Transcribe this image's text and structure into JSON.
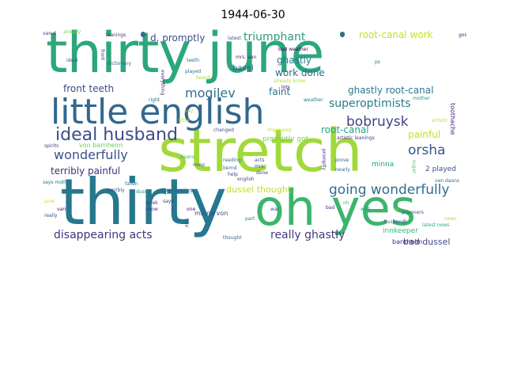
{
  "title": "1944-06-30",
  "words": [
    {
      "text": "thirty june",
      "color": "#2ba77b"
    },
    {
      "text": "stretch",
      "color": "#a2d93a"
    },
    {
      "text": "thirty",
      "color": "#25788e"
    },
    {
      "text": "oh yes",
      "color": "#3cb56c"
    },
    {
      "text": "little english",
      "color": "#31688e"
    },
    {
      "text": "ideal husband",
      "color": "#3e4c8a"
    },
    {
      "text": "going wonderfully",
      "color": "#2d6e8e"
    },
    {
      "text": "mogilev",
      "color": "#2d708e"
    },
    {
      "text": "bobruysk",
      "color": "#404387"
    },
    {
      "text": "orsha",
      "color": "#3a548c"
    },
    {
      "text": "wonderfully",
      "color": "#3b528b"
    },
    {
      "text": "triumphant",
      "color": "#2e9a82"
    },
    {
      "text": "superoptimists",
      "color": "#287c8e"
    },
    {
      "text": "root-canal work",
      "color": "#c8e020"
    },
    {
      "text": "d. promptly",
      "color": "#3b518b"
    },
    {
      "text": "disappearing acts",
      "color": "#46327e"
    },
    {
      "text": "really ghastly",
      "color": "#443a83"
    },
    {
      "text": "work done",
      "color": "#2f6b8e"
    },
    {
      "text": "ghastly",
      "color": "#297a8e"
    },
    {
      "text": "ghastly root-canal",
      "color": "#2a778e"
    },
    {
      "text": "front teeth",
      "color": "#3f4889"
    },
    {
      "text": "faint",
      "color": "#2c738e"
    },
    {
      "text": "root-canal",
      "color": "#21a685"
    },
    {
      "text": "painful",
      "color": "#c2df23"
    },
    {
      "text": "terribly painful",
      "color": "#472d7b"
    },
    {
      "text": "dussel thought",
      "color": "#bddf26"
    },
    {
      "text": "bad dussel",
      "color": "#3f4788"
    },
    {
      "text": "von barnheim",
      "color": "#6ccd5a"
    },
    {
      "text": "promptly got",
      "color": "#7ad151"
    },
    {
      "text": "minna",
      "color": "#1fa188"
    },
    {
      "text": "2 played",
      "color": "#3b528b"
    },
    {
      "text": "basel",
      "color": "#39568c"
    },
    {
      "text": "innkeeper",
      "color": "#35b779"
    },
    {
      "text": "minna von",
      "color": "#3e4a89"
    },
    {
      "text": "toothache",
      "color": "#482475"
    },
    {
      "text": "barnhelm",
      "color": "#482173"
    },
    {
      "text": "van d",
      "color": "#443983"
    },
    {
      "text": "already",
      "color": "#7ad151"
    },
    {
      "text": "leanings",
      "color": "#46337f"
    },
    {
      "text": "latest",
      "color": "#38588c"
    },
    {
      "text": "going",
      "color": "#481769"
    },
    {
      "text": "bad weather",
      "color": "#440154"
    },
    {
      "text": "ideal",
      "color": "#3a548c"
    },
    {
      "text": "front",
      "color": "#414487"
    },
    {
      "text": "teeth",
      "color": "#31688e"
    },
    {
      "text": "mrs. van",
      "color": "#481f70"
    },
    {
      "text": "already know",
      "color": "#b5de2b"
    },
    {
      "text": "lots",
      "color": "#440154"
    },
    {
      "text": "dictionary",
      "color": "#31688e"
    },
    {
      "text": "played",
      "color": "#2e6e8e"
    },
    {
      "text": "heard",
      "color": "#a5db36"
    },
    {
      "text": "everything",
      "color": "#46327e"
    },
    {
      "text": "right",
      "color": "#2c728e"
    },
    {
      "text": "say",
      "color": "#b8de29"
    },
    {
      "text": "little",
      "color": "#d8e219"
    },
    {
      "text": "artistic",
      "color": "#bddf26"
    },
    {
      "text": "artistic leanings",
      "color": "#453781"
    },
    {
      "text": "changed",
      "color": "#3b528b"
    },
    {
      "text": "improving",
      "color": "#bddf26"
    },
    {
      "text": "spirits",
      "color": "#414487"
    },
    {
      "text": "miep",
      "color": "#3e4989"
    },
    {
      "text": "daans",
      "color": "#35b779"
    },
    {
      "text": "bernd",
      "color": "#2e6f8e"
    },
    {
      "text": "acts",
      "color": "#3b528b"
    },
    {
      "text": "mrs.",
      "color": "#453882"
    },
    {
      "text": "done",
      "color": "#3f4788"
    },
    {
      "text": "prove",
      "color": "#34618d"
    },
    {
      "text": "nearly",
      "color": "#31688e"
    },
    {
      "text": "promptly",
      "color": "#433d84"
    },
    {
      "text": "sugar",
      "color": "#4ac16d"
    },
    {
      "text": "van daans",
      "color": "#2c728e"
    },
    {
      "text": "says mother",
      "color": "#2d708e"
    },
    {
      "text": "fallen",
      "color": "#2a788e"
    },
    {
      "text": "terribly",
      "color": "#3a548c"
    },
    {
      "text": "dussel",
      "color": "#25838e"
    },
    {
      "text": "disappearing",
      "color": "#31688e"
    },
    {
      "text": "help",
      "color": "#3f4889"
    },
    {
      "text": "english",
      "color": "#3d4e8a"
    },
    {
      "text": "reading",
      "color": "#2f6c8e"
    },
    {
      "text": "oh",
      "color": "#4ac16d"
    },
    {
      "text": "well",
      "color": "#1e9c89"
    },
    {
      "text": "bad",
      "color": "#482878"
    },
    {
      "text": "prisoners",
      "color": "#3b518b"
    },
    {
      "text": "news",
      "color": "#b5de2b"
    },
    {
      "text": "latest news",
      "color": "#22a884"
    },
    {
      "text": "june",
      "color": "#d0e11c"
    },
    {
      "text": "van",
      "color": "#440154"
    },
    {
      "text": "week",
      "color": "#443983"
    },
    {
      "text": "know",
      "color": "#453882"
    },
    {
      "text": "says",
      "color": "#46337f"
    },
    {
      "text": "one",
      "color": "#481769"
    },
    {
      "text": "hair",
      "color": "#3e4989"
    },
    {
      "text": "war",
      "color": "#3b528b"
    },
    {
      "text": "really",
      "color": "#3d4d8a"
    },
    {
      "text": "husband",
      "color": "#355f8d"
    },
    {
      "text": "part",
      "color": "#26828e"
    },
    {
      "text": "thought",
      "color": "#31688e"
    },
    {
      "text": "d.",
      "color": "#2a788e"
    },
    {
      "text": "ps",
      "color": "#2c728e"
    },
    {
      "text": "mother",
      "color": "#21918c"
    },
    {
      "text": "weather",
      "color": "#27808e"
    },
    {
      "text": "2",
      "color": "#d2e21b"
    }
  ]
}
